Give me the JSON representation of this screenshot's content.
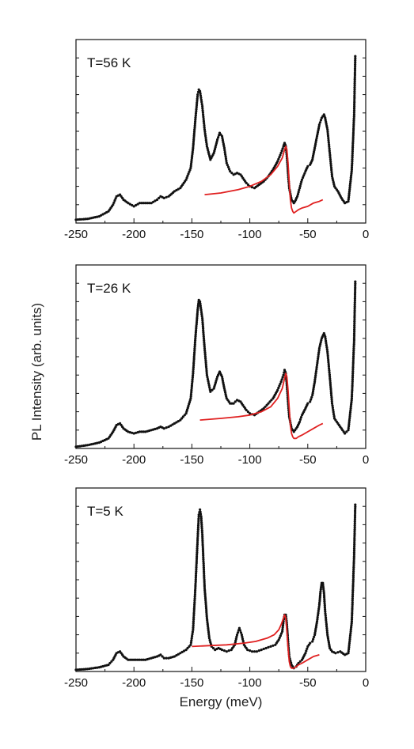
{
  "figure": {
    "ylabel": "PL Intensity (arb. units)",
    "xlabel": "Energy (meV)"
  },
  "chart_data": [
    {
      "type": "line",
      "panel_label": "T=56 K",
      "xlim": [
        -250,
        0
      ],
      "ylim": [
        0,
        1.1
      ],
      "x_ticks": [
        -250,
        -200,
        -150,
        -100,
        -50,
        0
      ],
      "x_tick_labels": [
        "-250",
        "-200",
        "-150",
        "-100",
        "-50",
        "0"
      ],
      "series": [
        {
          "color": "#111111",
          "style": "dots",
          "x": [
            -250,
            -240,
            -230,
            -222,
            -218,
            -215,
            -212,
            -209,
            -205,
            -200,
            -195,
            -190,
            -185,
            -180,
            -177,
            -174,
            -170,
            -165,
            -160,
            -155,
            -151,
            -149,
            -147,
            -145,
            -144,
            -143,
            -141,
            -139,
            -137,
            -134,
            -131,
            -128,
            -126,
            -124,
            -122,
            -120,
            -117,
            -114,
            -111,
            -108,
            -106,
            -103,
            -100,
            -96,
            -92,
            -88,
            -84,
            -80,
            -76,
            -73,
            -71,
            -70,
            -69,
            -68,
            -67,
            -66,
            -64,
            -62,
            -61,
            -59,
            -57,
            -55,
            -52,
            -50,
            -48,
            -46,
            -44,
            -42,
            -40,
            -38,
            -36,
            -35,
            -33,
            -31,
            -29,
            -27,
            -24,
            -21,
            -18,
            -15,
            -12,
            -10,
            -9
          ],
          "y": [
            0.02,
            0.025,
            0.04,
            0.07,
            0.11,
            0.16,
            0.17,
            0.14,
            0.12,
            0.1,
            0.12,
            0.12,
            0.12,
            0.14,
            0.16,
            0.15,
            0.16,
            0.19,
            0.21,
            0.26,
            0.33,
            0.45,
            0.62,
            0.77,
            0.8,
            0.79,
            0.7,
            0.56,
            0.46,
            0.38,
            0.42,
            0.5,
            0.54,
            0.52,
            0.45,
            0.36,
            0.31,
            0.29,
            0.3,
            0.29,
            0.27,
            0.24,
            0.22,
            0.21,
            0.23,
            0.25,
            0.28,
            0.32,
            0.37,
            0.42,
            0.46,
            0.48,
            0.46,
            0.4,
            0.3,
            0.21,
            0.14,
            0.12,
            0.13,
            0.16,
            0.21,
            0.26,
            0.31,
            0.34,
            0.35,
            0.38,
            0.45,
            0.52,
            0.59,
            0.63,
            0.65,
            0.63,
            0.56,
            0.42,
            0.28,
            0.22,
            0.19,
            0.15,
            0.12,
            0.13,
            0.32,
            0.65,
            1.0
          ]
        },
        {
          "color": "#e02020",
          "style": "line",
          "x": [
            -139,
            -125,
            -110,
            -100,
            -90,
            -82,
            -76,
            -72,
            -70,
            -69,
            -68,
            -67,
            -66,
            -65,
            -64,
            -63,
            -62,
            -60,
            -58,
            -55,
            -50,
            -45,
            -40,
            -37
          ],
          "y": [
            0.17,
            0.18,
            0.2,
            0.22,
            0.25,
            0.29,
            0.34,
            0.39,
            0.44,
            0.46,
            0.44,
            0.36,
            0.24,
            0.14,
            0.09,
            0.07,
            0.06,
            0.07,
            0.08,
            0.09,
            0.1,
            0.12,
            0.13,
            0.14
          ]
        }
      ]
    },
    {
      "type": "line",
      "panel_label": "T=26 K",
      "xlim": [
        -250,
        0
      ],
      "ylim": [
        0,
        1.1
      ],
      "x_ticks": [
        -250,
        -200,
        -150,
        -100,
        -50,
        0
      ],
      "x_tick_labels": [
        "-250",
        "-200",
        "-150",
        "-100",
        "-50",
        "0"
      ],
      "series": [
        {
          "color": "#111111",
          "style": "dots",
          "x": [
            -250,
            -240,
            -230,
            -222,
            -218,
            -215,
            -212,
            -209,
            -205,
            -200,
            -195,
            -190,
            -185,
            -180,
            -177,
            -174,
            -170,
            -165,
            -160,
            -155,
            -151,
            -149,
            -147,
            -145,
            -144,
            -143,
            -141,
            -139,
            -137,
            -134,
            -131,
            -128,
            -126,
            -124,
            -122,
            -120,
            -117,
            -114,
            -111,
            -108,
            -106,
            -103,
            -100,
            -96,
            -92,
            -88,
            -84,
            -80,
            -76,
            -73,
            -71,
            -70,
            -69,
            -68,
            -67,
            -66,
            -64,
            -62,
            -61,
            -59,
            -57,
            -55,
            -52,
            -50,
            -48,
            -46,
            -44,
            -42,
            -40,
            -38,
            -36,
            -35,
            -33,
            -31,
            -29,
            -27,
            -24,
            -21,
            -18,
            -15,
            -12,
            -10,
            -9
          ],
          "y": [
            0.01,
            0.02,
            0.035,
            0.06,
            0.1,
            0.14,
            0.15,
            0.12,
            0.1,
            0.09,
            0.1,
            0.1,
            0.11,
            0.12,
            0.13,
            0.12,
            0.13,
            0.15,
            0.17,
            0.21,
            0.3,
            0.45,
            0.66,
            0.83,
            0.89,
            0.88,
            0.78,
            0.6,
            0.44,
            0.34,
            0.36,
            0.43,
            0.46,
            0.43,
            0.36,
            0.3,
            0.27,
            0.27,
            0.29,
            0.28,
            0.26,
            0.23,
            0.21,
            0.2,
            0.22,
            0.24,
            0.27,
            0.3,
            0.35,
            0.4,
            0.44,
            0.47,
            0.45,
            0.38,
            0.28,
            0.19,
            0.12,
            0.1,
            0.11,
            0.13,
            0.16,
            0.2,
            0.24,
            0.27,
            0.28,
            0.32,
            0.4,
            0.5,
            0.6,
            0.66,
            0.69,
            0.67,
            0.58,
            0.43,
            0.27,
            0.18,
            0.15,
            0.12,
            0.09,
            0.11,
            0.3,
            0.65,
            1.0
          ]
        },
        {
          "color": "#e02020",
          "style": "line",
          "x": [
            -143,
            -125,
            -110,
            -100,
            -90,
            -82,
            -76,
            -72,
            -70,
            -69,
            -68,
            -67,
            -66,
            -65,
            -64,
            -63,
            -62,
            -60,
            -58,
            -55,
            -50,
            -45,
            -40,
            -37
          ],
          "y": [
            0.17,
            0.18,
            0.19,
            0.2,
            0.22,
            0.25,
            0.3,
            0.36,
            0.42,
            0.45,
            0.43,
            0.35,
            0.24,
            0.14,
            0.09,
            0.07,
            0.06,
            0.06,
            0.07,
            0.08,
            0.1,
            0.12,
            0.14,
            0.15
          ]
        }
      ]
    },
    {
      "type": "line",
      "panel_label": "T=5 K",
      "xlim": [
        -250,
        0
      ],
      "ylim": [
        0,
        1.1
      ],
      "x_ticks": [
        -250,
        -200,
        -150,
        -100,
        -50,
        0
      ],
      "x_tick_labels": [
        "-250",
        "-200",
        "-150",
        "-100",
        "-50",
        "0"
      ],
      "series": [
        {
          "color": "#111111",
          "style": "dots",
          "x": [
            -250,
            -240,
            -230,
            -222,
            -218,
            -215,
            -212,
            -209,
            -205,
            -200,
            -195,
            -190,
            -185,
            -180,
            -177,
            -174,
            -170,
            -165,
            -160,
            -155,
            -151,
            -149,
            -147,
            -145,
            -144,
            -143,
            -142,
            -141,
            -140,
            -139,
            -137,
            -135,
            -133,
            -130,
            -127,
            -124,
            -120,
            -116,
            -113,
            -111,
            -109,
            -107,
            -105,
            -102,
            -98,
            -94,
            -90,
            -86,
            -82,
            -78,
            -75,
            -72,
            -71,
            -70,
            -69,
            -68,
            -67,
            -66,
            -64,
            -62,
            -60,
            -58,
            -55,
            -52,
            -50,
            -48,
            -46,
            -44,
            -42,
            -40,
            -39,
            -38,
            -37,
            -36,
            -35,
            -33,
            -31,
            -29,
            -26,
            -22,
            -18,
            -15,
            -12,
            -10,
            -9
          ],
          "y": [
            0.01,
            0.015,
            0.025,
            0.04,
            0.07,
            0.11,
            0.12,
            0.09,
            0.07,
            0.07,
            0.07,
            0.07,
            0.08,
            0.09,
            0.1,
            0.08,
            0.08,
            0.09,
            0.11,
            0.13,
            0.16,
            0.25,
            0.5,
            0.8,
            0.94,
            0.97,
            0.93,
            0.82,
            0.66,
            0.5,
            0.32,
            0.2,
            0.15,
            0.13,
            0.14,
            0.13,
            0.12,
            0.13,
            0.16,
            0.22,
            0.26,
            0.22,
            0.16,
            0.13,
            0.12,
            0.12,
            0.13,
            0.14,
            0.15,
            0.16,
            0.19,
            0.24,
            0.3,
            0.34,
            0.34,
            0.28,
            0.18,
            0.09,
            0.04,
            0.02,
            0.03,
            0.05,
            0.07,
            0.11,
            0.15,
            0.17,
            0.18,
            0.22,
            0.3,
            0.4,
            0.48,
            0.53,
            0.53,
            0.47,
            0.36,
            0.22,
            0.14,
            0.12,
            0.11,
            0.12,
            0.1,
            0.11,
            0.3,
            0.7,
            1.0
          ]
        },
        {
          "color": "#e02020",
          "style": "line",
          "x": [
            -150,
            -135,
            -120,
            -105,
            -95,
            -85,
            -79,
            -75,
            -73,
            -71,
            -70,
            -69,
            -68,
            -67,
            -66,
            -65,
            -64,
            -62,
            -60,
            -58,
            -55,
            -50,
            -45,
            -40
          ],
          "y": [
            0.15,
            0.155,
            0.16,
            0.17,
            0.18,
            0.2,
            0.22,
            0.25,
            0.28,
            0.32,
            0.34,
            0.32,
            0.24,
            0.14,
            0.06,
            0.03,
            0.02,
            0.02,
            0.03,
            0.04,
            0.05,
            0.07,
            0.09,
            0.1
          ]
        }
      ]
    }
  ]
}
